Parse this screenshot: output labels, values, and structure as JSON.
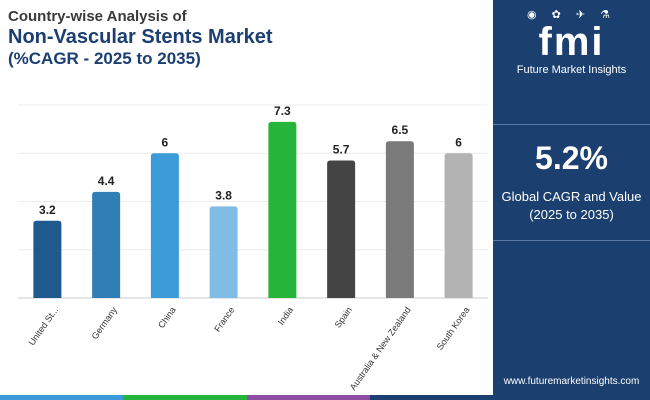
{
  "header": {
    "line1": "Country-wise Analysis of",
    "line2": "Non-Vascular Stents Market",
    "line3": "(%CAGR - 2025 to 2035)"
  },
  "chart_data": {
    "type": "bar",
    "categories": [
      "United St...",
      "Germany",
      "China",
      "France",
      "India",
      "Spain",
      "Australia & New Zealand",
      "South Korea"
    ],
    "values": [
      3.2,
      4.4,
      6,
      3.8,
      7.3,
      5.7,
      6.5,
      6
    ],
    "value_labels": [
      "3.2",
      "4.4",
      "6",
      "3.8",
      "7.3",
      "5.7",
      "6.5",
      "6"
    ],
    "colors": [
      "#1f5a8c",
      "#2f7eb5",
      "#3b9ad8",
      "#7fbde6",
      "#27b43a",
      "#444444",
      "#7a7a7a",
      "#b3b3b3"
    ],
    "ylim": [
      0,
      8
    ],
    "grid": true,
    "title": "Non-Vascular Stents Market",
    "xlabel": "",
    "ylabel": ""
  },
  "panel": {
    "logo_icons": "◉ ✿ ✈ ⚗",
    "logo_text": "fmi",
    "logo_subtitle": "Future Market Insights",
    "cagr_value": "5.2%",
    "cagr_label_line1": "Global CAGR and Value",
    "cagr_label_line2": "(2025 to 2035)",
    "website": "www.futuremarketinsights.com"
  },
  "colors": {
    "panel_bg": "#1b3f6e",
    "title_dark": "#1b3f72",
    "stripe": [
      "#3b9ad8",
      "#27b43a",
      "#8a4fa3",
      "#1b3f6e"
    ]
  }
}
